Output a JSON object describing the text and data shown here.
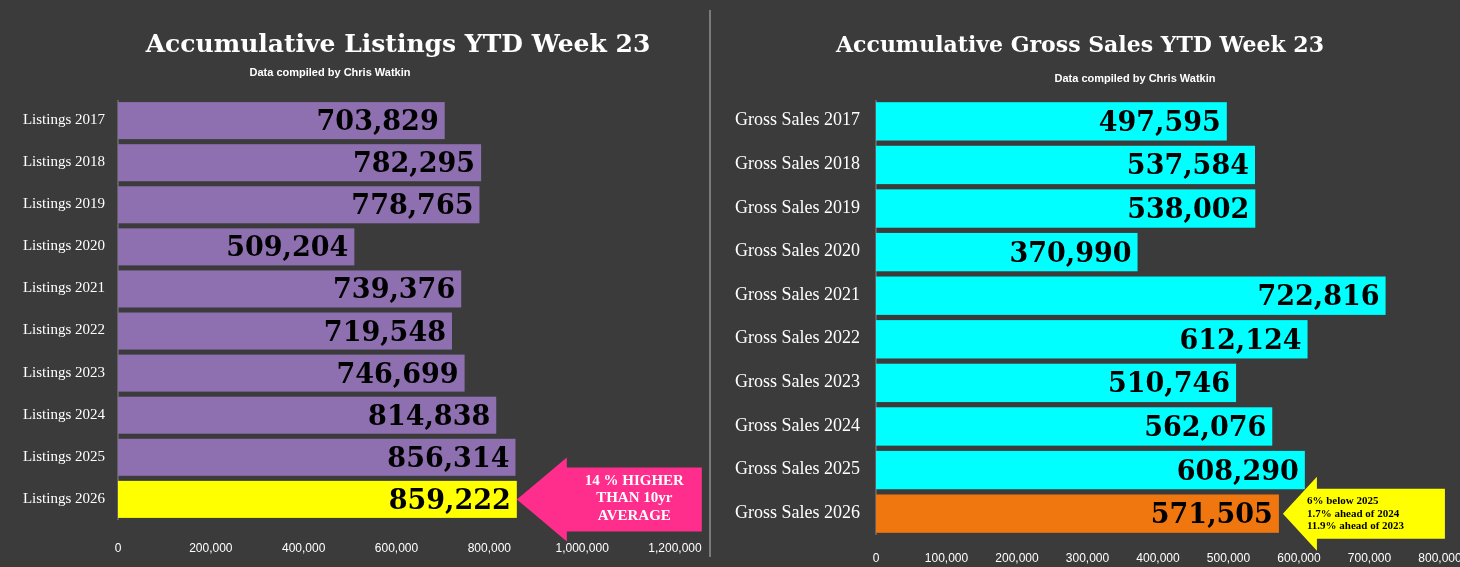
{
  "chart_data": [
    {
      "type": "bar",
      "orientation": "horizontal",
      "title": "Accumulative Listings YTD Week 23",
      "subtitle": "Data compiled by Chris Watkin",
      "categories": [
        "Listings 2017",
        "Listings 2018",
        "Listings 2019",
        "Listings 2020",
        "Listings 2021",
        "Listings 2022",
        "Listings 2023",
        "Listings 2024",
        "Listings 2025",
        "Listings 2026"
      ],
      "values": [
        703829,
        782295,
        778765,
        509204,
        739376,
        719548,
        746699,
        814838,
        856314,
        859222
      ],
      "value_labels": [
        "703,829",
        "782,295",
        "778,765",
        "509,204",
        "739,376",
        "719,548",
        "746,699",
        "814,838",
        "856,314",
        "859,222"
      ],
      "colors": [
        "#8e6fb0",
        "#8e6fb0",
        "#8e6fb0",
        "#8e6fb0",
        "#8e6fb0",
        "#8e6fb0",
        "#8e6fb0",
        "#8e6fb0",
        "#8e6fb0",
        "#ffff00"
      ],
      "xlim": [
        0,
        1200000
      ],
      "xticks": [
        0,
        {
          "value": 200000,
          "label": "200,000"
        },
        {
          "value": 400000,
          "label": "400,000"
        },
        {
          "value": 600000,
          "label": "600,000"
        },
        {
          "value": 800000,
          "label": "800,000"
        },
        {
          "value": 1000000,
          "label": "1,000,000"
        },
        {
          "value": 1200000,
          "label": "1,200,000"
        }
      ],
      "annotations": [
        "14 % HIGHER\nTHAN 10yr\nAVERAGE"
      ]
    },
    {
      "type": "bar",
      "orientation": "horizontal",
      "title": "Accumulative Gross Sales YTD Week 23",
      "subtitle": "Data compiled by Chris Watkin",
      "categories": [
        "Gross Sales 2017",
        "Gross Sales 2018",
        "Gross Sales 2019",
        "Gross Sales 2020",
        "Gross Sales 2021",
        "Gross Sales 2022",
        "Gross Sales 2023",
        "Gross Sales 2024",
        "Gross Sales 2025",
        "Gross Sales 2026"
      ],
      "values": [
        497595,
        537584,
        538002,
        370990,
        722816,
        612124,
        510746,
        562076,
        608290,
        571505
      ],
      "value_labels": [
        "497,595",
        "537,584",
        "538,002",
        "370,990",
        "722,816",
        "612,124",
        "510,746",
        "562,076",
        "608,290",
        "571,505"
      ],
      "colors": [
        "#00ffff",
        "#00ffff",
        "#00ffff",
        "#00ffff",
        "#00ffff",
        "#00ffff",
        "#00ffff",
        "#00ffff",
        "#00ffff",
        "#f0760f"
      ],
      "xlim": [
        0,
        800000
      ],
      "xticks": [
        0,
        {
          "value": 100000,
          "label": "100,000"
        },
        {
          "value": 200000,
          "label": "200,000"
        },
        {
          "value": 300000,
          "label": "300,000"
        },
        {
          "value": 400000,
          "label": "400,000"
        },
        {
          "value": 500000,
          "label": "500,000"
        },
        {
          "value": 600000,
          "label": "600,000"
        },
        {
          "value": 700000,
          "label": "700,000"
        },
        {
          "value": 800000,
          "label": "800,000"
        }
      ],
      "annotations": [
        "6% below 2025\n1.7% ahead of 2024\n11.9% ahead of 2023"
      ]
    }
  ]
}
